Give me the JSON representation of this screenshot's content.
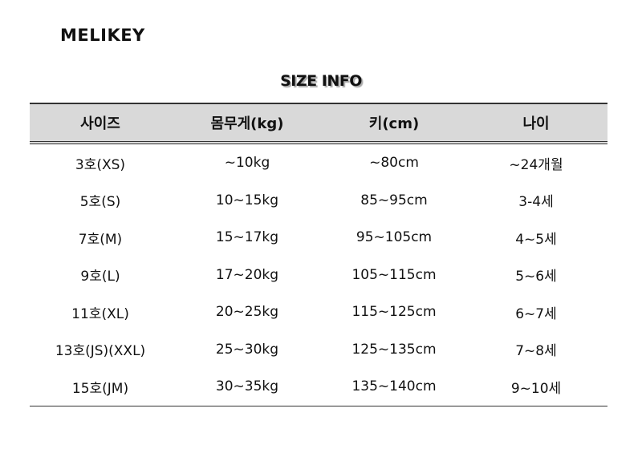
{
  "brand": "MELIKEY",
  "title": "SIZE INFO",
  "headers": [
    "사이즈",
    "몸무게(kg)",
    "키(cm)",
    "나이"
  ],
  "rows": [
    [
      "3호(XS)",
      "~10kg",
      "~80cm",
      "~24개월"
    ],
    [
      "5호(S)",
      "10~15kg",
      "85~95cm",
      "3-4세"
    ],
    [
      "7호(M)",
      "15~17kg",
      "95~105cm",
      "4~5세"
    ],
    [
      "9호(L)",
      "17~20kg",
      "105~115cm",
      "5~6세"
    ],
    [
      "11호(XL)",
      "20~25kg",
      "115~125cm",
      "6~7세"
    ],
    [
      "13호(JS)(XXL)",
      "25~30kg",
      "125~135cm",
      "7~8세"
    ],
    [
      "15호(JM)",
      "30~35kg",
      "135~140cm",
      "9~10세"
    ]
  ]
}
